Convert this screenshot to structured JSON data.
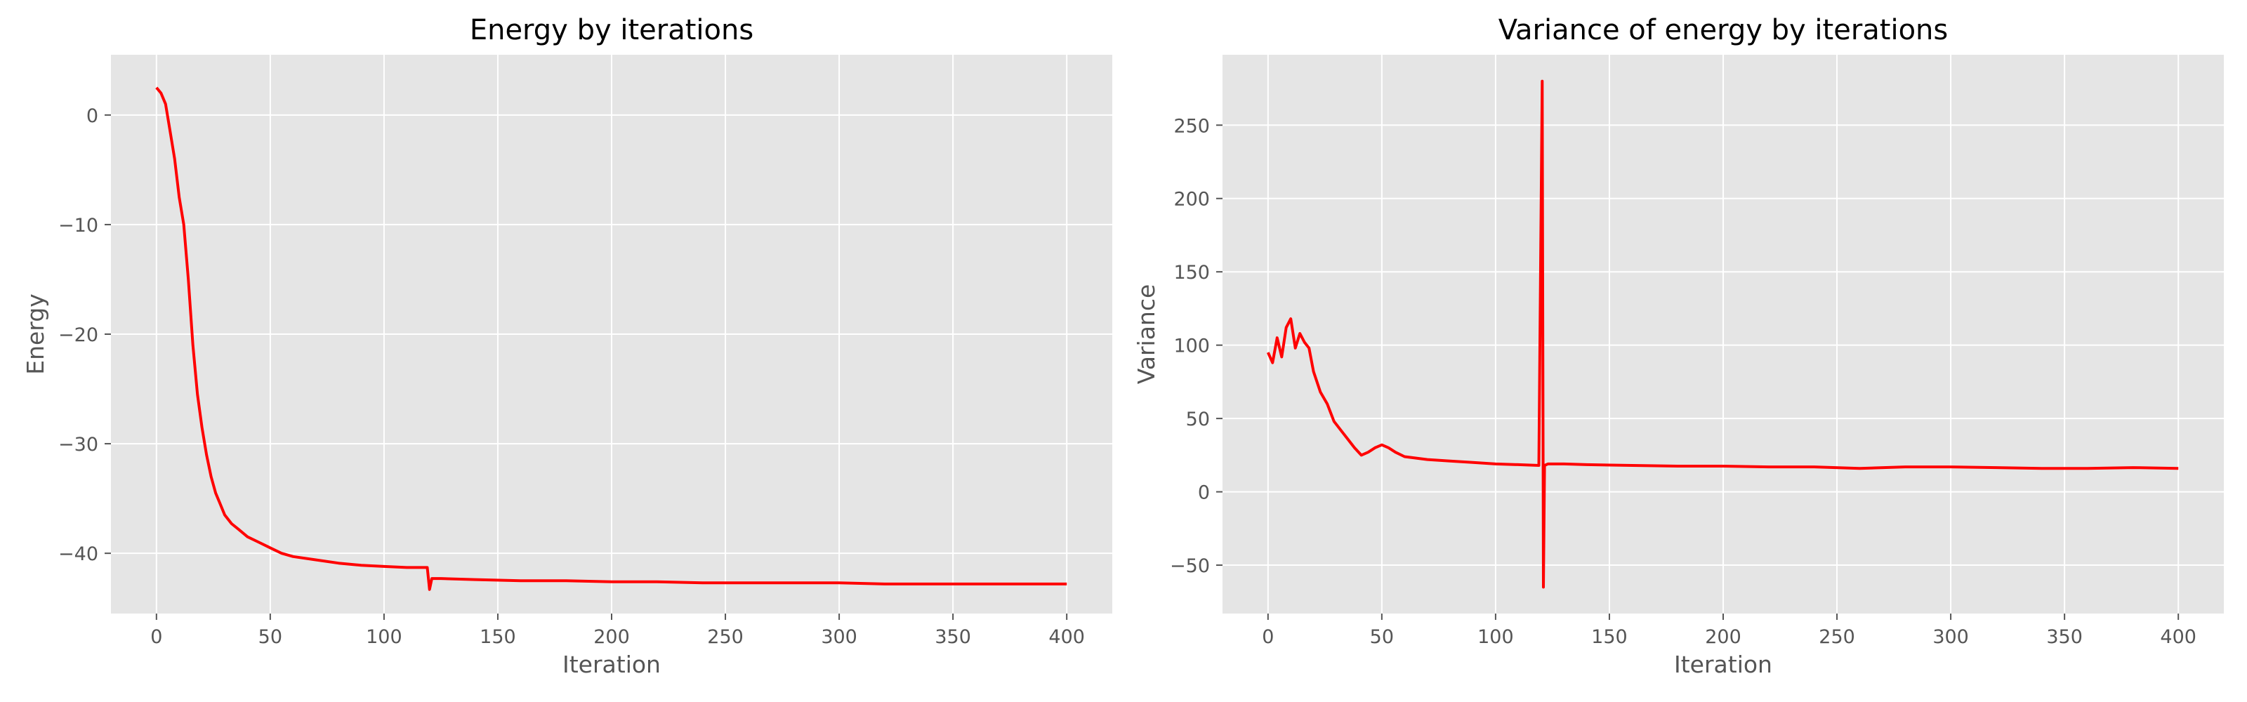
{
  "chart_data": [
    {
      "type": "line",
      "title": "Energy by iterations",
      "xlabel": "Iteration",
      "ylabel": "Energy",
      "xlim": [
        -20,
        420
      ],
      "ylim": [
        -45.5,
        5.5
      ],
      "xticks": [
        0,
        50,
        100,
        150,
        200,
        250,
        300,
        350,
        400
      ],
      "xtick_labels": [
        "0",
        "50",
        "100",
        "150",
        "200",
        "250",
        "300",
        "350",
        "400"
      ],
      "yticks": [
        0,
        -10,
        -20,
        -30,
        -40
      ],
      "ytick_labels": [
        "0",
        "−10",
        "−20",
        "−30",
        "−40"
      ],
      "grid": true,
      "color": "#ff0000",
      "series": [
        {
          "x": [
            0,
            2,
            4,
            6,
            8,
            10,
            12,
            14,
            16,
            18,
            20,
            22,
            24,
            26,
            28,
            30,
            33,
            36,
            40,
            45,
            50,
            55,
            60,
            70,
            80,
            90,
            100,
            110,
            119,
            120,
            121,
            125,
            140,
            160,
            180,
            200,
            220,
            240,
            260,
            280,
            300,
            320,
            340,
            360,
            380,
            400
          ],
          "y": [
            2.5,
            2,
            1,
            -1.5,
            -4,
            -7.5,
            -10,
            -15,
            -21,
            -25.5,
            -28.5,
            -31,
            -33,
            -34.5,
            -35.5,
            -36.5,
            -37.3,
            -37.8,
            -38.5,
            -39,
            -39.5,
            -40,
            -40.3,
            -40.6,
            -40.9,
            -41.1,
            -41.2,
            -41.3,
            -41.3,
            -43.3,
            -42.3,
            -42.3,
            -42.4,
            -42.5,
            -42.5,
            -42.6,
            -42.6,
            -42.7,
            -42.7,
            -42.7,
            -42.7,
            -42.8,
            -42.8,
            -42.8,
            -42.8,
            -42.8
          ]
        }
      ]
    },
    {
      "type": "line",
      "title": "Variance of energy by iterations",
      "xlabel": "Iteration",
      "ylabel": "Variance",
      "xlim": [
        -20,
        420
      ],
      "ylim": [
        -83,
        298
      ],
      "xticks": [
        0,
        50,
        100,
        150,
        200,
        250,
        300,
        350,
        400
      ],
      "xtick_labels": [
        "0",
        "50",
        "100",
        "150",
        "200",
        "250",
        "300",
        "350",
        "400"
      ],
      "yticks": [
        -50,
        0,
        50,
        100,
        150,
        200,
        250
      ],
      "ytick_labels": [
        "−50",
        "0",
        "50",
        "100",
        "150",
        "200",
        "250"
      ],
      "grid": true,
      "color": "#ff0000",
      "series": [
        {
          "x": [
            0,
            2,
            4,
            6,
            8,
            10,
            12,
            14,
            16,
            18,
            20,
            23,
            26,
            29,
            32,
            35,
            38,
            41,
            44,
            47,
            50,
            53,
            56,
            60,
            70,
            80,
            90,
            100,
            110,
            119,
            120.5,
            121,
            121.5,
            123,
            130,
            140,
            160,
            180,
            200,
            220,
            240,
            260,
            280,
            300,
            320,
            340,
            360,
            380,
            400
          ],
          "y": [
            95,
            88,
            105,
            92,
            112,
            118,
            98,
            108,
            102,
            98,
            82,
            68,
            60,
            48,
            42,
            36,
            30,
            25,
            27,
            30,
            32,
            30,
            27,
            24,
            22,
            21,
            20,
            19,
            18.5,
            18,
            280,
            -65,
            18,
            19,
            19,
            18.5,
            18,
            17.5,
            17.5,
            17,
            17,
            16,
            17,
            17,
            16.5,
            16,
            16,
            16.5,
            16
          ]
        }
      ]
    }
  ]
}
